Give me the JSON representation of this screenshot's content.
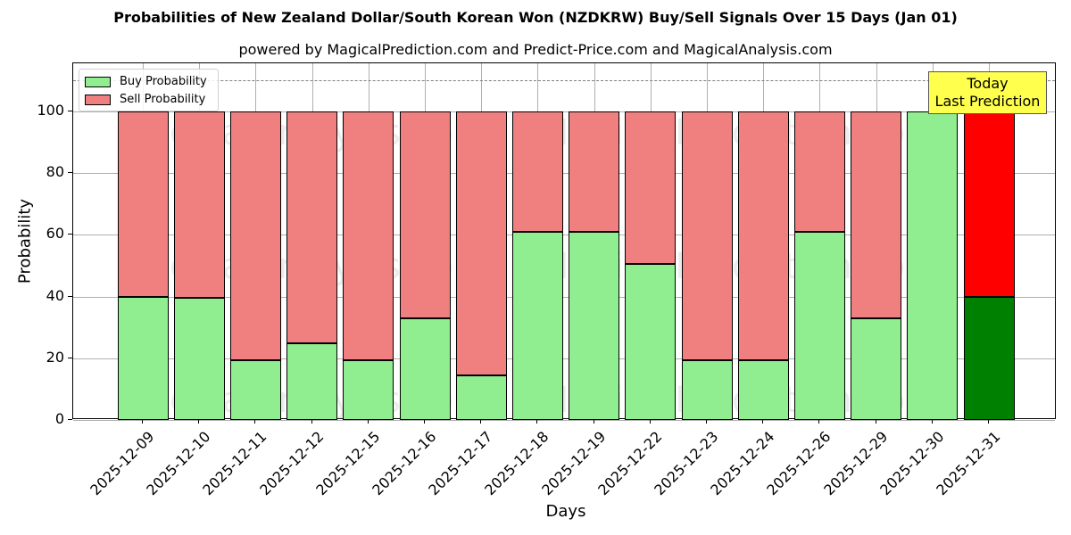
{
  "title": "Probabilities of New Zealand Dollar/South Korean Won (NZDKRW) Buy/Sell Signals Over 15 Days (Jan 01)",
  "subtitle": "powered by MagicalPrediction.com and Predict-Price.com and MagicalAnalysis.com",
  "legend": {
    "buy_label": "Buy Probability",
    "sell_label": "Sell Probability"
  },
  "annotation": {
    "line1": "Today",
    "line2": "Last Prediction"
  },
  "watermarks": [
    "MagicalAnalysis.com",
    "MagicalPrediction.com"
  ],
  "colors": {
    "buy": "#90ee90",
    "sell": "#f08080",
    "today_buy": "#008000",
    "today_sell": "#ff0000",
    "annotation_bg": "#ffff4d"
  },
  "chart_data": {
    "type": "bar",
    "stacked": true,
    "title": "Probabilities of New Zealand Dollar/South Korean Won (NZDKRW) Buy/Sell Signals Over 15 Days (Jan 01)",
    "subtitle": "powered by MagicalPrediction.com and Predict-Price.com and MagicalAnalysis.com",
    "xlabel": "Days",
    "ylabel": "Probability",
    "ylim": [
      0,
      115
    ],
    "yticks": [
      0,
      20,
      40,
      60,
      80,
      100
    ],
    "reference_line": 110,
    "grid": true,
    "legend_position": "upper left",
    "categories": [
      "2025-12-09",
      "2025-12-10",
      "2025-12-11",
      "2025-12-12",
      "2025-12-15",
      "2025-12-16",
      "2025-12-17",
      "2025-12-18",
      "2025-12-19",
      "2025-12-22",
      "2025-12-23",
      "2025-12-24",
      "2025-12-26",
      "2025-12-29",
      "2025-12-30",
      "2025-12-31"
    ],
    "series": [
      {
        "name": "Buy Probability",
        "values": [
          40,
          39.5,
          19.5,
          25,
          19.5,
          33,
          14.5,
          61,
          61,
          50.5,
          19.5,
          19.5,
          61,
          33,
          100,
          40
        ]
      },
      {
        "name": "Sell Probability",
        "values": [
          60,
          60.5,
          80.5,
          75,
          80.5,
          67,
          85.5,
          39,
          39,
          49.5,
          80.5,
          80.5,
          39,
          67,
          0,
          60
        ]
      }
    ],
    "annotations": [
      {
        "text": "Today\nLast Prediction",
        "category": "2025-12-31"
      }
    ]
  }
}
